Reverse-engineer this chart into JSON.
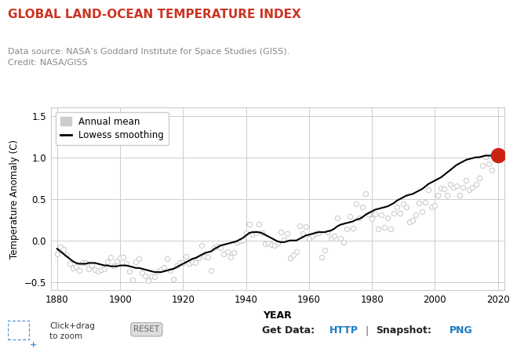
{
  "title": "GLOBAL LAND-OCEAN TEMPERATURE INDEX",
  "title_color": "#cc3322",
  "subtitle_line1": "Data source: NASA’s Goddard Institute for Space Studies (GISS).",
  "subtitle_line2": "Credit: NASA/GISS",
  "subtitle_color": "#888888",
  "xlabel": "YEAR",
  "ylabel": "Temperature Anomaly (C)",
  "xlim": [
    1878,
    2022
  ],
  "ylim": [
    -0.6,
    1.6
  ],
  "yticks": [
    -0.5,
    0.0,
    0.5,
    1.0,
    1.5
  ],
  "xticks": [
    1880,
    1900,
    1920,
    1940,
    1960,
    1980,
    2000,
    2020
  ],
  "bg_color": "#ffffff",
  "plot_bg_color": "#ffffff",
  "grid_color": "#cccccc",
  "annual_mean_color": "#cccccc",
  "lowess_color": "#000000",
  "highlight_color": "#cc2211",
  "highlight_year": 2020,
  "highlight_value": 1.02,
  "annual_mean_years": [
    1880,
    1881,
    1882,
    1883,
    1884,
    1885,
    1886,
    1887,
    1888,
    1889,
    1890,
    1891,
    1892,
    1893,
    1894,
    1895,
    1896,
    1897,
    1898,
    1899,
    1900,
    1901,
    1902,
    1903,
    1904,
    1905,
    1906,
    1907,
    1908,
    1909,
    1910,
    1911,
    1912,
    1913,
    1914,
    1915,
    1916,
    1917,
    1918,
    1919,
    1920,
    1921,
    1922,
    1923,
    1924,
    1925,
    1926,
    1927,
    1928,
    1929,
    1930,
    1931,
    1932,
    1933,
    1934,
    1935,
    1936,
    1937,
    1938,
    1939,
    1940,
    1941,
    1942,
    1943,
    1944,
    1945,
    1946,
    1947,
    1948,
    1949,
    1950,
    1951,
    1952,
    1953,
    1954,
    1955,
    1956,
    1957,
    1958,
    1959,
    1960,
    1961,
    1962,
    1963,
    1964,
    1965,
    1966,
    1967,
    1968,
    1969,
    1970,
    1971,
    1972,
    1973,
    1974,
    1975,
    1976,
    1977,
    1978,
    1979,
    1980,
    1981,
    1982,
    1983,
    1984,
    1985,
    1986,
    1987,
    1988,
    1989,
    1990,
    1991,
    1992,
    1993,
    1994,
    1995,
    1996,
    1997,
    1998,
    1999,
    2000,
    2001,
    2002,
    2003,
    2004,
    2005,
    2006,
    2007,
    2008,
    2009,
    2010,
    2011,
    2012,
    2013,
    2014,
    2015,
    2016,
    2017,
    2018,
    2019,
    2020
  ],
  "annual_mean_values": [
    -0.16,
    -0.08,
    -0.11,
    -0.17,
    -0.28,
    -0.33,
    -0.31,
    -0.36,
    -0.27,
    -0.27,
    -0.34,
    -0.29,
    -0.35,
    -0.37,
    -0.35,
    -0.34,
    -0.26,
    -0.2,
    -0.3,
    -0.25,
    -0.21,
    -0.2,
    -0.28,
    -0.37,
    -0.47,
    -0.26,
    -0.22,
    -0.39,
    -0.43,
    -0.48,
    -0.43,
    -0.44,
    -0.37,
    -0.35,
    -0.32,
    -0.22,
    -0.36,
    -0.46,
    -0.3,
    -0.27,
    -0.27,
    -0.19,
    -0.28,
    -0.26,
    -0.27,
    -0.21,
    -0.06,
    -0.19,
    -0.2,
    -0.36,
    -0.09,
    -0.07,
    -0.09,
    -0.16,
    -0.13,
    -0.2,
    -0.14,
    -0.02,
    -0.0,
    0.01,
    0.09,
    0.2,
    0.07,
    0.09,
    0.2,
    0.09,
    -0.04,
    -0.03,
    -0.05,
    -0.06,
    -0.03,
    0.1,
    0.01,
    0.08,
    -0.21,
    -0.17,
    -0.13,
    0.18,
    0.08,
    0.17,
    0.03,
    0.05,
    0.08,
    0.09,
    -0.2,
    -0.12,
    0.1,
    0.03,
    0.05,
    0.27,
    0.03,
    -0.02,
    0.14,
    0.29,
    0.15,
    0.44,
    0.27,
    0.4,
    0.56,
    0.32,
    0.26,
    0.32,
    0.14,
    0.31,
    0.16,
    0.27,
    0.14,
    0.33,
    0.4,
    0.33,
    0.44,
    0.4,
    0.22,
    0.24,
    0.31,
    0.45,
    0.35,
    0.46,
    0.61,
    0.4,
    0.42,
    0.54,
    0.63,
    0.62,
    0.54,
    0.68,
    0.64,
    0.66,
    0.54,
    0.64,
    0.72,
    0.61,
    0.64,
    0.68,
    0.75,
    0.9,
    1.01,
    0.92,
    0.85,
    0.98,
    1.02
  ],
  "lowess_years": [
    1880,
    1881,
    1882,
    1883,
    1884,
    1885,
    1886,
    1887,
    1888,
    1889,
    1890,
    1891,
    1892,
    1893,
    1894,
    1895,
    1896,
    1897,
    1898,
    1899,
    1900,
    1901,
    1902,
    1903,
    1904,
    1905,
    1906,
    1907,
    1908,
    1909,
    1910,
    1911,
    1912,
    1913,
    1914,
    1915,
    1916,
    1917,
    1918,
    1919,
    1920,
    1921,
    1922,
    1923,
    1924,
    1925,
    1926,
    1927,
    1928,
    1929,
    1930,
    1931,
    1932,
    1933,
    1934,
    1935,
    1936,
    1937,
    1938,
    1939,
    1940,
    1941,
    1942,
    1943,
    1944,
    1945,
    1946,
    1947,
    1948,
    1949,
    1950,
    1951,
    1952,
    1953,
    1954,
    1955,
    1956,
    1957,
    1958,
    1959,
    1960,
    1961,
    1962,
    1963,
    1964,
    1965,
    1966,
    1967,
    1968,
    1969,
    1970,
    1971,
    1972,
    1973,
    1974,
    1975,
    1976,
    1977,
    1978,
    1979,
    1980,
    1981,
    1982,
    1983,
    1984,
    1985,
    1986,
    1987,
    1988,
    1989,
    1990,
    1991,
    1992,
    1993,
    1994,
    1995,
    1996,
    1997,
    1998,
    1999,
    2000,
    2001,
    2002,
    2003,
    2004,
    2005,
    2006,
    2007,
    2008,
    2009,
    2010,
    2011,
    2012,
    2013,
    2014,
    2015,
    2016,
    2017,
    2018,
    2019,
    2020
  ],
  "lowess_values": [
    -0.1,
    -0.13,
    -0.16,
    -0.19,
    -0.22,
    -0.25,
    -0.27,
    -0.28,
    -0.28,
    -0.28,
    -0.27,
    -0.27,
    -0.27,
    -0.28,
    -0.29,
    -0.3,
    -0.3,
    -0.31,
    -0.31,
    -0.31,
    -0.3,
    -0.3,
    -0.3,
    -0.31,
    -0.32,
    -0.33,
    -0.33,
    -0.34,
    -0.35,
    -0.36,
    -0.37,
    -0.38,
    -0.38,
    -0.38,
    -0.37,
    -0.36,
    -0.35,
    -0.34,
    -0.32,
    -0.3,
    -0.28,
    -0.26,
    -0.24,
    -0.22,
    -0.21,
    -0.19,
    -0.17,
    -0.15,
    -0.14,
    -0.13,
    -0.1,
    -0.08,
    -0.06,
    -0.05,
    -0.04,
    -0.03,
    -0.02,
    -0.01,
    0.01,
    0.03,
    0.06,
    0.09,
    0.1,
    0.1,
    0.1,
    0.09,
    0.07,
    0.05,
    0.03,
    0.01,
    -0.01,
    -0.02,
    -0.02,
    -0.01,
    0.0,
    0.0,
    0.0,
    0.02,
    0.04,
    0.06,
    0.07,
    0.08,
    0.09,
    0.1,
    0.1,
    0.1,
    0.11,
    0.12,
    0.14,
    0.17,
    0.19,
    0.2,
    0.21,
    0.22,
    0.23,
    0.25,
    0.26,
    0.28,
    0.31,
    0.33,
    0.35,
    0.37,
    0.38,
    0.39,
    0.4,
    0.41,
    0.43,
    0.45,
    0.48,
    0.5,
    0.52,
    0.54,
    0.55,
    0.56,
    0.58,
    0.6,
    0.62,
    0.65,
    0.68,
    0.7,
    0.72,
    0.74,
    0.76,
    0.79,
    0.82,
    0.85,
    0.88,
    0.91,
    0.93,
    0.95,
    0.97,
    0.98,
    0.99,
    1.0,
    1.0,
    1.01,
    1.02,
    1.02,
    1.02,
    1.02,
    1.02
  ],
  "link_color": "#1a7bc4",
  "legend_annual_label": "Annual mean",
  "legend_lowess_label": "Lowess smoothing"
}
